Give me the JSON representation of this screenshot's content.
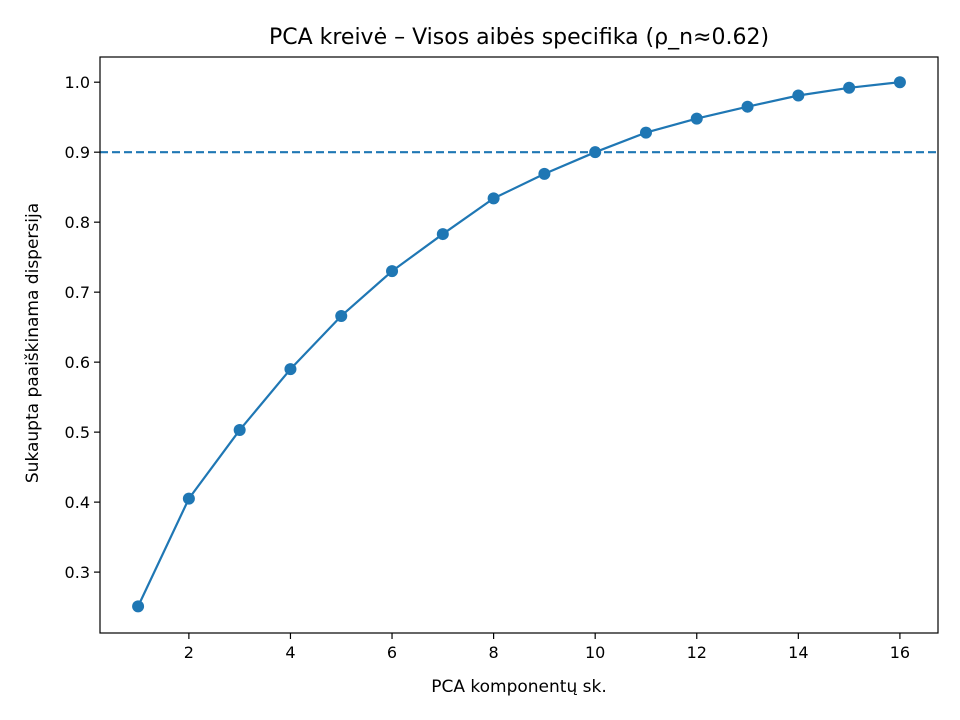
{
  "chart_data": {
    "type": "line",
    "title": "PCA kreivė – Visos aibės specifika (ρ_n≈0.62)",
    "xlabel": "PCA komponentų sk.",
    "ylabel": "Sukaupta paaiškinama dispersija",
    "xlim": [
      0.25,
      16.75
    ],
    "ylim": [
      0.213,
      1.036
    ],
    "x_ticks": [
      2,
      4,
      6,
      8,
      10,
      12,
      14,
      16
    ],
    "y_ticks": [
      0.3,
      0.4,
      0.5,
      0.6,
      0.7,
      0.8,
      0.9,
      1.0
    ],
    "x_tick_labels": [
      "2",
      "4",
      "6",
      "8",
      "10",
      "12",
      "14",
      "16"
    ],
    "y_tick_labels": [
      "0.3",
      "0.4",
      "0.5",
      "0.6",
      "0.7",
      "0.8",
      "0.9",
      "1.0"
    ],
    "grid": false,
    "series": [
      {
        "color": "#1f77b4",
        "marker": "circle",
        "x": [
          1,
          2,
          3,
          4,
          5,
          6,
          7,
          8,
          9,
          10,
          11,
          12,
          13,
          14,
          15,
          16
        ],
        "values": [
          0.251,
          0.405,
          0.503,
          0.59,
          0.666,
          0.73,
          0.783,
          0.834,
          0.869,
          0.9,
          0.928,
          0.948,
          0.965,
          0.981,
          0.992,
          1.0
        ]
      }
    ],
    "reference_lines": [
      {
        "orientation": "horizontal",
        "y": 0.9,
        "style": "dashed",
        "color": "#1f77b4"
      }
    ]
  }
}
